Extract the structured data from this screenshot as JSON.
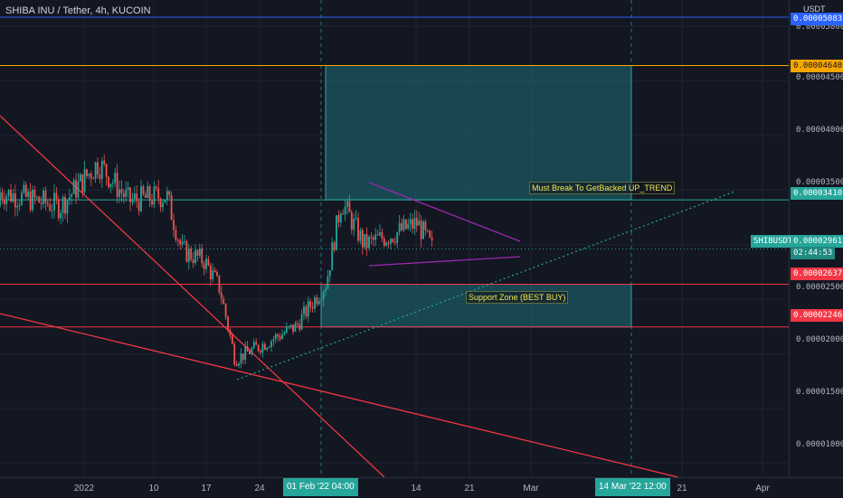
{
  "header": {
    "title": "SHIBA INU / Tether, 4h, KUCOIN",
    "currency": "USDT"
  },
  "price_labels": {
    "blue": "0.00005083",
    "orange": "0.00004640",
    "green": "0.00003410",
    "symbol": "SHIBUSDT",
    "current": "0.00002961",
    "countdown": "02:44:53",
    "red1": "0.00002637",
    "red2": "0.00002246"
  },
  "y_ticks": [
    "0.00005000",
    "0.00004500",
    "0.00004000",
    "0.00003500",
    "0.00002500",
    "0.00002000",
    "0.00001500",
    "0.00001000"
  ],
  "x_ticks": [
    "2022",
    "10",
    "17",
    "24",
    "14",
    "21",
    "Mar",
    "21",
    "Apr"
  ],
  "x_highlights": {
    "left": "01 Feb '22   04:00",
    "right": "14 Mar '22   12:00"
  },
  "annotations": {
    "resistance": "Must Break To GetBacked UP_TREND",
    "support": "Support Zone (BEST BUY)"
  },
  "colors": {
    "background": "#131722",
    "up": "#26a69a",
    "down": "#ef5350",
    "blue_line": "#2962ff",
    "orange_line": "#f7a600",
    "red_line": "#f23645",
    "zone": "#1e6f78",
    "triangle": "#9c27b0"
  },
  "chart_data": {
    "type": "line",
    "title": "SHIBA INU / Tether, 4h, KUCOIN",
    "ylim": [
      8.7e-06,
      5.24e-05
    ],
    "x": [
      "2022-01-01",
      "2022-01-06",
      "2022-01-10",
      "2022-01-15",
      "2022-01-17",
      "2022-01-20",
      "2022-01-22",
      "2022-01-24",
      "2022-01-28",
      "2022-02-01",
      "2022-02-05",
      "2022-02-07",
      "2022-02-10",
      "2022-02-14",
      "2022-02-17",
      "2022-02-19"
    ],
    "series": [
      {
        "values": [
          3.35e-05,
          3.75e-05,
          3.4e-05,
          3.45e-05,
          2.95e-05,
          2.85e-05,
          2.6e-05,
          1.95e-05,
          2.1e-05,
          2.25e-05,
          2.65e-05,
          3.4e-05,
          3e-05,
          3.1e-05,
          3.2e-05,
          2.96e-05
        ]
      }
    ],
    "levels": [
      5.083e-05,
      4.64e-05,
      3.41e-05,
      2.637e-05,
      2.246e-05
    ],
    "zones": [
      [
        3.41e-05,
        4.64e-05
      ],
      [
        2.246e-05,
        2.637e-05
      ]
    ]
  }
}
